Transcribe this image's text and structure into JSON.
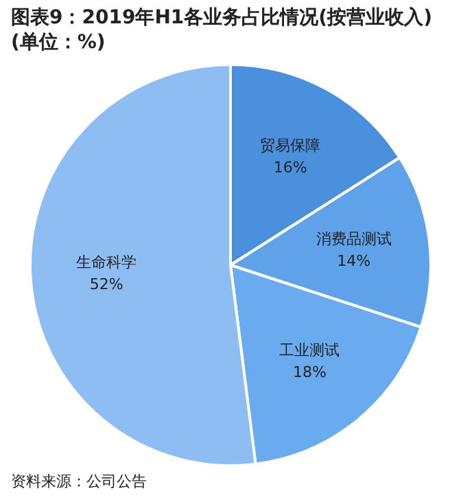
{
  "chart_data": {
    "type": "pie",
    "title": "图表9：2019年H1各业务占比情况(按营业收入)(单位：%)",
    "categories": [
      "贸易保障",
      "消费品测试",
      "工业测试",
      "生命科学"
    ],
    "values": [
      16,
      14,
      18,
      52
    ],
    "value_labels": [
      "16%",
      "14%",
      "18%",
      "52%"
    ],
    "colors": [
      "#4a90dc",
      "#5fa2ea",
      "#6aabf0",
      "#8dbdf3"
    ],
    "annotations": [
      "资料来源：公司公告"
    ]
  }
}
